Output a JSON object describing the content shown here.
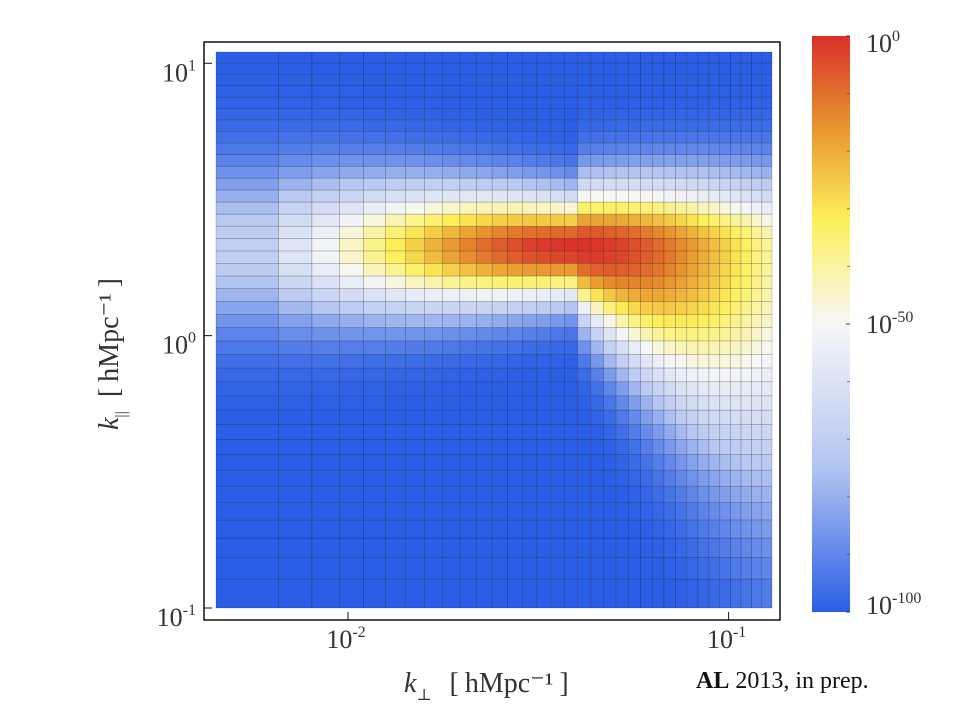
{
  "chart_data": {
    "type": "heatmap",
    "x_scale": "log",
    "y_scale": "log",
    "xlim": [
      0.0045,
      0.13
    ],
    "ylim": [
      0.1,
      11
    ],
    "xlabel": {
      "symbol": "k",
      "subscript": "⊥",
      "unit": "hMpc⁻¹"
    },
    "ylabel": {
      "symbol": "k",
      "subscript": "||",
      "unit": "hMpc⁻¹"
    },
    "x_ticks": [
      {
        "value": 0.01,
        "base": "10",
        "exp": "-2"
      },
      {
        "value": 0.1,
        "base": "10",
        "exp": "-1"
      }
    ],
    "y_ticks": [
      {
        "value": 0.1,
        "base": "10",
        "exp": "-1"
      },
      {
        "value": 1,
        "base": "10",
        "exp": "0"
      },
      {
        "value": 10,
        "base": "10",
        "exp": "1"
      }
    ],
    "colorbar": {
      "scale": "log",
      "range_log10": [
        -100,
        0
      ],
      "ticks": [
        {
          "value_log10": 0,
          "base": "10",
          "exp": "0"
        },
        {
          "value_log10": -50,
          "base": "10",
          "exp": "-50"
        },
        {
          "value_log10": -100,
          "base": "10",
          "exp": "-100"
        }
      ],
      "colormap": [
        "#2a5ee6",
        "#b8c8f2",
        "#f7f7f7",
        "#fdf05a",
        "#e8962e",
        "#d9302a"
      ]
    },
    "peak": {
      "k_perp": 0.04,
      "k_par": 2.1,
      "value_log10": 0
    },
    "description_values": {
      "ridge_k_par": 2.1,
      "background_log10": -100
    }
  },
  "annotation": {
    "bold": "AL",
    "rest": " 2013, in prep."
  }
}
